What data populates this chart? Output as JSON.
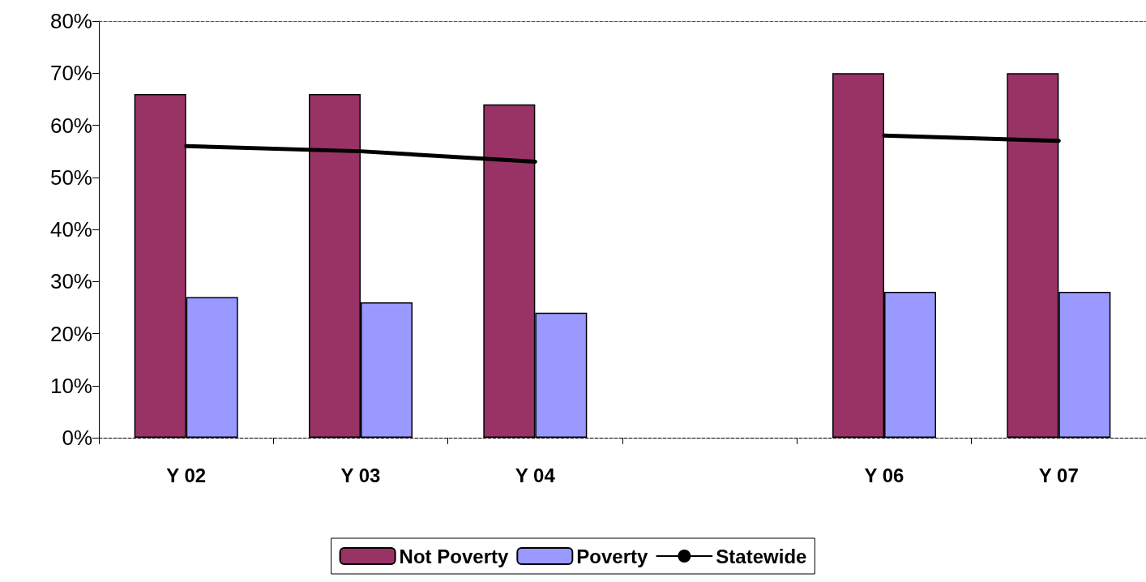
{
  "chart_data": {
    "type": "bar",
    "categories": [
      "Y 02",
      "Y 03",
      "Y 04",
      null,
      "Y 06",
      "Y 07"
    ],
    "series": [
      {
        "name": "Not Poverty",
        "color": "#993366",
        "values": [
          66,
          66,
          64,
          null,
          70,
          70
        ]
      },
      {
        "name": "Poverty",
        "color": "#9999ff",
        "values": [
          27,
          26,
          24,
          null,
          28,
          28
        ]
      },
      {
        "name": "Statewide",
        "type": "line",
        "color": "#000000",
        "values": [
          56,
          55,
          53,
          null,
          58,
          57
        ]
      }
    ],
    "ylim": [
      0,
      80
    ],
    "yticks": [
      {
        "value": 0,
        "label": "0%"
      },
      {
        "value": 10,
        "label": "10%"
      },
      {
        "value": 20,
        "label": "20%"
      },
      {
        "value": 30,
        "label": "30%"
      },
      {
        "value": 40,
        "label": "40%"
      },
      {
        "value": 50,
        "label": "50%"
      },
      {
        "value": 60,
        "label": "60%"
      },
      {
        "value": 70,
        "label": "70%"
      },
      {
        "value": 80,
        "label": "80%"
      }
    ],
    "grid": false,
    "legend": "bottom",
    "marker": "none"
  }
}
